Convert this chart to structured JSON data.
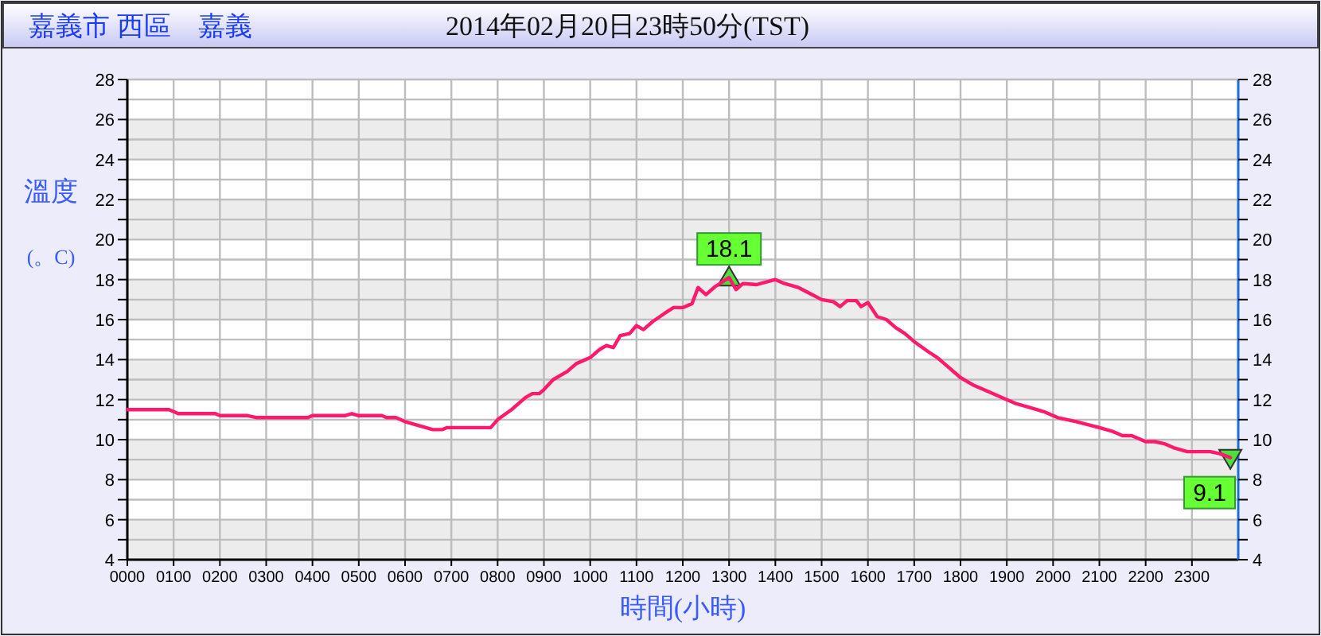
{
  "chart_data": {
    "type": "line",
    "title": "嘉義市 西區　嘉義",
    "subtitle": "2014年02月20日23時50分(TST)",
    "xlabel": "時間(小時)",
    "ylabel": "溫度 (。C)",
    "xlim": [
      0,
      2400
    ],
    "xticks": [
      {
        "value": 0,
        "label": "0000"
      },
      {
        "value": 100,
        "label": "0100"
      },
      {
        "value": 200,
        "label": "0200"
      },
      {
        "value": 300,
        "label": "0300"
      },
      {
        "value": 400,
        "label": "0400"
      },
      {
        "value": 500,
        "label": "0500"
      },
      {
        "value": 600,
        "label": "0600"
      },
      {
        "value": 700,
        "label": "0700"
      },
      {
        "value": 800,
        "label": "0800"
      },
      {
        "value": 900,
        "label": "0900"
      },
      1000,
      1100,
      1200,
      1300,
      1400,
      1500,
      1600,
      1700,
      1800,
      1900,
      2000,
      2100,
      2200,
      2300
    ],
    "ylim": [
      4,
      28
    ],
    "yticks": [
      4,
      {
        "value": 5,
        "label": null
      },
      6,
      {
        "value": 7,
        "label": null
      },
      8,
      {
        "value": 9,
        "label": null
      },
      10,
      {
        "value": 11,
        "label": null
      },
      12,
      {
        "value": 13,
        "label": null
      },
      14,
      {
        "value": 15,
        "label": null
      },
      16,
      {
        "value": 17,
        "label": null
      },
      18,
      {
        "value": 19,
        "label": null
      },
      20,
      {
        "value": 21,
        "label": null
      },
      22,
      {
        "value": 23,
        "label": null
      },
      24,
      {
        "value": 25,
        "label": null
      },
      26,
      {
        "value": 27,
        "label": null
      },
      28
    ],
    "y2lim": [
      4,
      28
    ],
    "y2ticks": [
      4,
      {
        "value": 5,
        "label": null
      },
      6,
      {
        "value": 7,
        "label": null
      },
      8,
      {
        "value": 9,
        "label": null
      },
      10,
      {
        "value": 11,
        "label": null
      },
      12,
      {
        "value": 13,
        "label": null
      },
      14,
      {
        "value": 15,
        "label": null
      },
      16,
      {
        "value": 17,
        "label": null
      },
      18,
      {
        "value": 19,
        "label": null
      },
      20,
      {
        "value": 21,
        "label": null
      },
      22,
      {
        "value": 23,
        "label": null
      },
      24,
      {
        "value": 25,
        "label": null
      },
      26,
      {
        "value": 27,
        "label": null
      },
      28
    ],
    "grid": true,
    "marker": "none",
    "line_style": "solid",
    "series": [
      {
        "color": "#ff1a6e",
        "x": [
          0,
          90,
          110,
          190,
          200,
          260,
          280,
          390,
          400,
          470,
          485,
          500,
          550,
          560,
          580,
          600,
          630,
          660,
          680,
          690,
          785,
          800,
          830,
          860,
          875,
          890,
          900,
          920,
          950,
          970,
          1000,
          1020,
          1035,
          1050,
          1065,
          1085,
          1100,
          1115,
          1135,
          1160,
          1180,
          1200,
          1220,
          1233,
          1250,
          1270,
          1300,
          1315,
          1330,
          1360,
          1400,
          1420,
          1450,
          1475,
          1500,
          1525,
          1540,
          1555,
          1575,
          1585,
          1600,
          1620,
          1640,
          1660,
          1680,
          1700,
          1730,
          1750,
          1770,
          1800,
          1830,
          1860,
          1890,
          1920,
          1950,
          1980,
          2010,
          2050,
          2100,
          2130,
          2150,
          2170,
          2200,
          2220,
          2240,
          2260,
          2290,
          2340,
          2360,
          2383
        ],
        "values": [
          11.5,
          11.5,
          11.3,
          11.3,
          11.2,
          11.2,
          11.1,
          11.1,
          11.2,
          11.2,
          11.3,
          11.2,
          11.2,
          11.1,
          11.1,
          10.9,
          10.7,
          10.5,
          10.5,
          10.6,
          10.6,
          11.0,
          11.5,
          12.1,
          12.3,
          12.3,
          12.5,
          13.0,
          13.4,
          13.8,
          14.1,
          14.5,
          14.7,
          14.6,
          15.2,
          15.3,
          15.7,
          15.5,
          15.9,
          16.3,
          16.6,
          16.6,
          16.8,
          17.6,
          17.25,
          17.65,
          18.1,
          17.5,
          17.8,
          17.75,
          18.0,
          17.8,
          17.6,
          17.3,
          17.0,
          16.9,
          16.65,
          16.95,
          16.95,
          16.65,
          16.85,
          16.15,
          16.0,
          15.6,
          15.3,
          14.9,
          14.4,
          14.1,
          13.7,
          13.1,
          12.7,
          12.4,
          12.1,
          11.8,
          11.6,
          11.4,
          11.1,
          10.9,
          10.6,
          10.4,
          10.2,
          10.2,
          9.9,
          9.9,
          9.8,
          9.6,
          9.4,
          9.4,
          9.3,
          9.1
        ]
      }
    ],
    "annotations": [
      {
        "text": "18.1",
        "x": 1300,
        "y": 18.1
      },
      {
        "text": "9.1",
        "x": 2383,
        "y": 9.1
      }
    ]
  }
}
